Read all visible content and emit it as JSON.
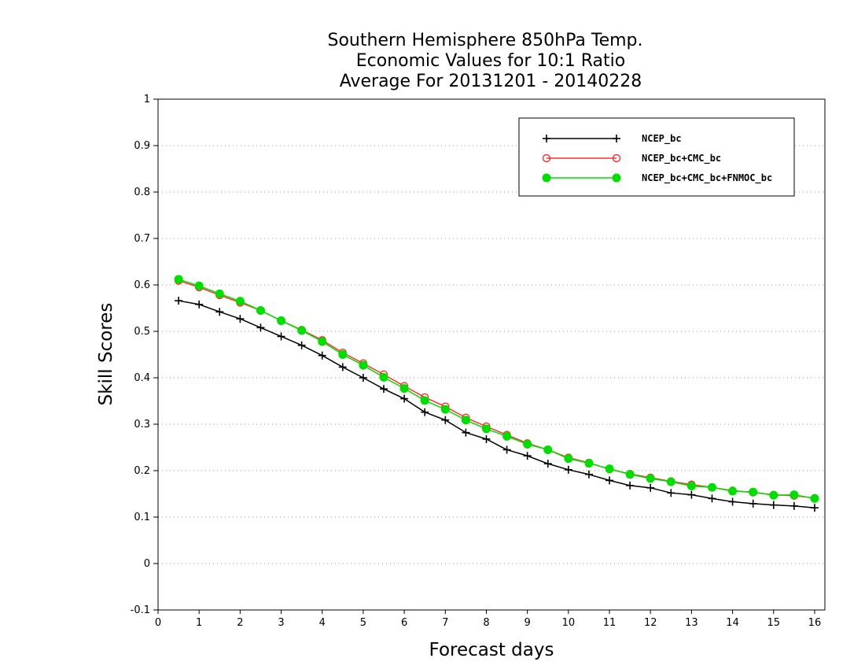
{
  "chart_data": {
    "type": "line",
    "title": [
      "Southern Hemisphere 850hPa Temp.",
      "Economic Values for 10:1 Ratio",
      "Average For 20131201 - 20140228"
    ],
    "xlabel": "Forecast days",
    "ylabel": "Skill Scores",
    "xlim": [
      0,
      16.25
    ],
    "ylim": [
      -0.1,
      1
    ],
    "xticks": [
      "0",
      "1",
      "2",
      "3",
      "4",
      "5",
      "6",
      "7",
      "8",
      "9",
      "10",
      "11",
      "12",
      "13",
      "14",
      "15",
      "16"
    ],
    "yticks": [
      "-0.1",
      "0",
      "0.1",
      "0.2",
      "0.3",
      "0.4",
      "0.5",
      "0.6",
      "0.7",
      "0.8",
      "0.9",
      "1"
    ],
    "grid": "horizontal dotted",
    "legend_position": "top-right",
    "x": [
      0.5,
      1,
      1.5,
      2,
      2.5,
      3,
      3.5,
      4,
      4.5,
      5,
      5.5,
      6,
      6.5,
      7,
      7.5,
      8,
      8.5,
      9,
      9.5,
      10,
      10.5,
      11,
      11.5,
      12,
      12.5,
      13,
      13.5,
      14,
      14.5,
      15,
      15.5,
      16
    ],
    "series": [
      {
        "name": "NCEP_bc",
        "color": "#000000",
        "marker": "plus",
        "values": [
          0.566,
          0.558,
          0.542,
          0.527,
          0.508,
          0.489,
          0.47,
          0.448,
          0.423,
          0.4,
          0.376,
          0.355,
          0.326,
          0.309,
          0.282,
          0.268,
          0.245,
          0.232,
          0.215,
          0.202,
          0.192,
          0.179,
          0.168,
          0.163,
          0.152,
          0.148,
          0.14,
          0.133,
          0.129,
          0.126,
          0.124,
          0.12
        ]
      },
      {
        "name": "NCEP_bc+CMC_bc",
        "color": "#ff3030",
        "marker": "open-circle",
        "values": [
          0.609,
          0.595,
          0.578,
          0.562,
          0.545,
          0.523,
          0.503,
          0.481,
          0.454,
          0.431,
          0.407,
          0.382,
          0.358,
          0.338,
          0.314,
          0.295,
          0.277,
          0.259,
          0.245,
          0.228,
          0.217,
          0.203,
          0.193,
          0.185,
          0.177,
          0.17,
          0.164,
          0.157,
          0.153,
          0.148,
          0.146,
          0.141
        ]
      },
      {
        "name": "NCEP_bc+CMC_bc+FNMOC_bc",
        "color": "#00dd00",
        "marker": "filled-circle",
        "values": [
          0.612,
          0.598,
          0.581,
          0.565,
          0.545,
          0.523,
          0.502,
          0.478,
          0.45,
          0.427,
          0.401,
          0.377,
          0.351,
          0.332,
          0.309,
          0.29,
          0.274,
          0.257,
          0.245,
          0.226,
          0.216,
          0.204,
          0.192,
          0.183,
          0.176,
          0.167,
          0.164,
          0.156,
          0.154,
          0.147,
          0.148,
          0.14
        ]
      }
    ]
  }
}
